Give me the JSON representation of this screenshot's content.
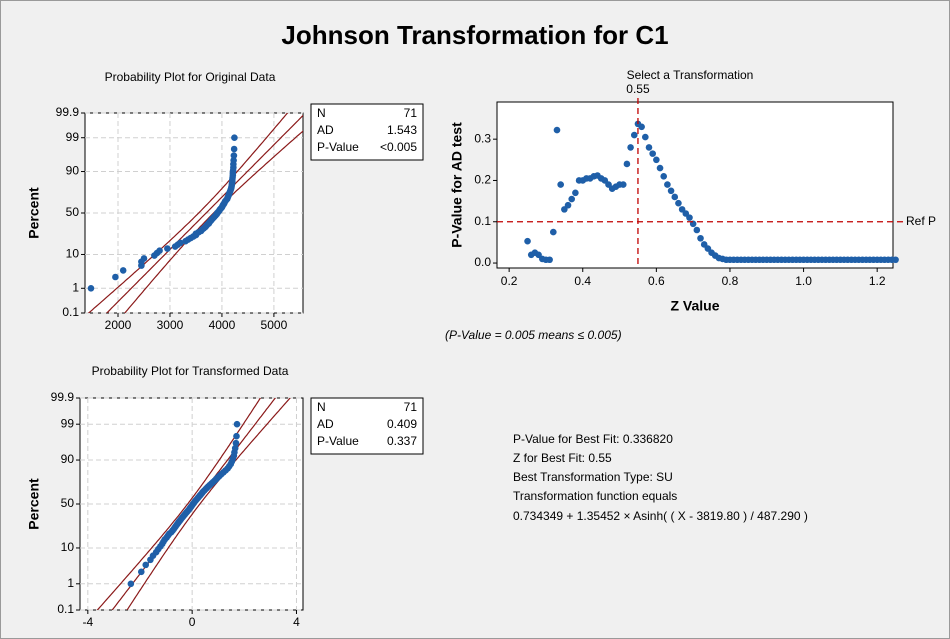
{
  "title": "Johnson Transformation for C1",
  "chart_data": [
    {
      "type": "probability",
      "title": "Probability Plot for Original Data",
      "ylabel": "Percent",
      "color": "#1f5fa8",
      "fit_color": "#8b1a1a",
      "grid": true,
      "yscale": "normal-probability",
      "x": [
        1480,
        1950,
        2100,
        2450,
        2450,
        2500,
        2700,
        2750,
        2800,
        2950,
        3100,
        3150,
        3200,
        3300,
        3350,
        3400,
        3450,
        3500,
        3500,
        3550,
        3600,
        3620,
        3650,
        3680,
        3700,
        3720,
        3750,
        3760,
        3780,
        3800,
        3820,
        3840,
        3860,
        3880,
        3900,
        3910,
        3930,
        3950,
        3960,
        3980,
        4000,
        4010,
        4020,
        4040,
        4050,
        4060,
        4080,
        4100,
        4110,
        4120,
        4130,
        4140,
        4150,
        4160,
        4170,
        4180,
        4185,
        4190,
        4195,
        4200,
        4200,
        4205,
        4210,
        4210,
        4215,
        4220,
        4220,
        4225,
        4230,
        4235,
        4240
      ],
      "y": [
        1.0,
        2.4,
        3.8,
        5.2,
        6.6,
        8.0,
        9.4,
        10.8,
        12.2,
        13.6,
        15.0,
        16.4,
        17.8,
        19.2,
        20.6,
        22.0,
        23.4,
        24.8,
        26.2,
        27.6,
        29.0,
        30.4,
        31.8,
        33.2,
        34.6,
        36.0,
        37.4,
        38.8,
        40.2,
        41.6,
        43.0,
        44.4,
        45.8,
        47.2,
        48.6,
        50.0,
        51.4,
        52.8,
        54.2,
        55.6,
        57.0,
        58.4,
        59.8,
        61.2,
        62.6,
        64.0,
        65.4,
        66.8,
        68.2,
        69.6,
        71.0,
        72.4,
        73.8,
        75.2,
        76.6,
        78.0,
        79.4,
        80.8,
        82.2,
        83.6,
        85.0,
        86.4,
        87.8,
        89.2,
        90.6,
        92.0,
        93.4,
        94.8,
        96.2,
        97.6,
        99.0
      ],
      "xlim": [
        1365,
        5560
      ],
      "xticks": [
        2000,
        3000,
        4000,
        5000
      ],
      "ylim": [
        0.1,
        99.9
      ],
      "yticks": [
        0.1,
        1,
        10,
        50,
        90,
        99,
        99.9
      ],
      "stats": [
        {
          "label": "N",
          "value": 71
        },
        {
          "label": "AD",
          "value": 1.543
        },
        {
          "label": "P-Value",
          "value": "<0.005"
        }
      ]
    },
    {
      "type": "probability",
      "title": "Probability Plot for Transformed Data",
      "ylabel": "Percent",
      "color": "#1f5fa8",
      "fit_color": "#8b1a1a",
      "grid": true,
      "yscale": "normal-probability",
      "x": [
        -2.35,
        -1.95,
        -1.78,
        -1.6,
        -1.5,
        -1.38,
        -1.3,
        -1.22,
        -1.15,
        -1.1,
        -1.05,
        -0.98,
        -0.93,
        -0.88,
        -0.8,
        -0.75,
        -0.7,
        -0.66,
        -0.62,
        -0.58,
        -0.54,
        -0.5,
        -0.46,
        -0.42,
        -0.38,
        -0.34,
        -0.3,
        -0.26,
        -0.22,
        -0.18,
        -0.14,
        -0.1,
        -0.07,
        -0.03,
        0.0,
        0.03,
        0.07,
        0.1,
        0.14,
        0.18,
        0.22,
        0.26,
        0.3,
        0.34,
        0.38,
        0.42,
        0.47,
        0.52,
        0.57,
        0.62,
        0.68,
        0.74,
        0.8,
        0.86,
        0.92,
        0.98,
        1.05,
        1.12,
        1.2,
        1.28,
        1.36,
        1.42,
        1.48,
        1.52,
        1.56,
        1.6,
        1.62,
        1.65,
        1.68,
        1.7,
        1.72
      ],
      "y": [
        1.0,
        2.4,
        3.8,
        5.2,
        6.6,
        8.0,
        9.4,
        10.8,
        12.2,
        13.6,
        15.0,
        16.4,
        17.8,
        19.2,
        20.6,
        22.0,
        23.4,
        24.8,
        26.2,
        27.6,
        29.0,
        30.4,
        31.8,
        33.2,
        34.6,
        36.0,
        37.4,
        38.8,
        40.2,
        41.6,
        43.0,
        44.4,
        45.8,
        47.2,
        48.6,
        50.0,
        51.4,
        52.8,
        54.2,
        55.6,
        57.0,
        58.4,
        59.8,
        61.2,
        62.6,
        64.0,
        65.4,
        66.8,
        68.2,
        69.6,
        71.0,
        72.4,
        73.8,
        75.2,
        76.6,
        78.0,
        79.4,
        80.8,
        82.2,
        83.6,
        85.0,
        86.4,
        87.8,
        89.2,
        90.6,
        92.0,
        93.4,
        94.8,
        96.2,
        97.6,
        99.0
      ],
      "xlim": [
        -4.3,
        4.25
      ],
      "xticks": [
        -4,
        0,
        4
      ],
      "ylim": [
        0.1,
        99.9
      ],
      "yticks": [
        0.1,
        1,
        10,
        50,
        90,
        99,
        99.9
      ],
      "stats": [
        {
          "label": "N",
          "value": 71
        },
        {
          "label": "AD",
          "value": 0.409
        },
        {
          "label": "P-Value",
          "value": 0.337
        }
      ]
    },
    {
      "type": "scatter",
      "title": "Select a Transformation",
      "xlabel": "Z Value",
      "ylabel": "P-Value for AD test",
      "color": "#1f5fa8",
      "ref_color": "#c00000",
      "x": [
        0.25,
        0.26,
        0.27,
        0.28,
        0.29,
        0.3,
        0.31,
        0.32,
        0.33,
        0.34,
        0.35,
        0.36,
        0.37,
        0.38,
        0.39,
        0.4,
        0.41,
        0.42,
        0.43,
        0.44,
        0.45,
        0.46,
        0.47,
        0.48,
        0.49,
        0.5,
        0.51,
        0.52,
        0.53,
        0.54,
        0.55,
        0.56,
        0.57,
        0.58,
        0.59,
        0.6,
        0.61,
        0.62,
        0.63,
        0.64,
        0.65,
        0.66,
        0.67,
        0.68,
        0.69,
        0.7,
        0.71,
        0.72,
        0.73,
        0.74,
        0.75,
        0.76,
        0.77,
        0.78,
        0.79,
        0.8,
        0.81,
        0.82,
        0.83,
        0.84,
        0.85,
        0.86,
        0.87,
        0.88,
        0.89,
        0.9,
        0.91,
        0.92,
        0.93,
        0.94,
        0.95,
        0.96,
        0.97,
        0.98,
        0.99,
        1.0,
        1.01,
        1.02,
        1.03,
        1.04,
        1.05,
        1.06,
        1.07,
        1.08,
        1.09,
        1.1,
        1.11,
        1.12,
        1.13,
        1.14,
        1.15,
        1.16,
        1.17,
        1.18,
        1.19,
        1.2,
        1.21,
        1.22,
        1.23,
        1.24,
        1.25
      ],
      "y": [
        0.053,
        0.02,
        0.025,
        0.02,
        0.01,
        0.008,
        0.008,
        0.075,
        0.322,
        0.19,
        0.13,
        0.14,
        0.155,
        0.17,
        0.2,
        0.2,
        0.205,
        0.205,
        0.21,
        0.212,
        0.205,
        0.2,
        0.19,
        0.18,
        0.185,
        0.19,
        0.19,
        0.24,
        0.28,
        0.31,
        0.337,
        0.33,
        0.305,
        0.28,
        0.265,
        0.25,
        0.23,
        0.21,
        0.19,
        0.175,
        0.16,
        0.145,
        0.13,
        0.12,
        0.11,
        0.095,
        0.08,
        0.06,
        0.045,
        0.035,
        0.025,
        0.018,
        0.012,
        0.01,
        0.008,
        0.008,
        0.008,
        0.008,
        0.008,
        0.008,
        0.008,
        0.008,
        0.008,
        0.008,
        0.008,
        0.008,
        0.008,
        0.008,
        0.008,
        0.008,
        0.008,
        0.008,
        0.008,
        0.008,
        0.008,
        0.008,
        0.008,
        0.008,
        0.008,
        0.008,
        0.008,
        0.008,
        0.008,
        0.008,
        0.008,
        0.008,
        0.008,
        0.008,
        0.008,
        0.008,
        0.008,
        0.008,
        0.008,
        0.008,
        0.008,
        0.008,
        0.008,
        0.008,
        0.008,
        0.008,
        0.008
      ],
      "xlim": [
        0.167,
        1.243
      ],
      "xticks": [
        0.2,
        0.4,
        0.6,
        0.8,
        {
          "value": 1.0,
          "label": "1.0"
        },
        1.2
      ],
      "ylim": [
        -0.012,
        0.39
      ],
      "yticks": [
        {
          "value": 0,
          "label": "0.0"
        },
        0.1,
        0.2,
        0.3
      ],
      "ref_p": 0.1,
      "ref_label": "Ref P",
      "best_z": 0.55
    }
  ],
  "note": "(P-Value = 0.005 means ≤ 0.005)",
  "summary": [
    "P-Value for Best Fit: 0.336820",
    "Z for Best Fit: 0.55",
    "Best Transformation Type: SU",
    "Transformation function equals",
    "0.734349 + 1.35452 × Asinh( ( X - 3819.80 ) / 487.290 )"
  ]
}
